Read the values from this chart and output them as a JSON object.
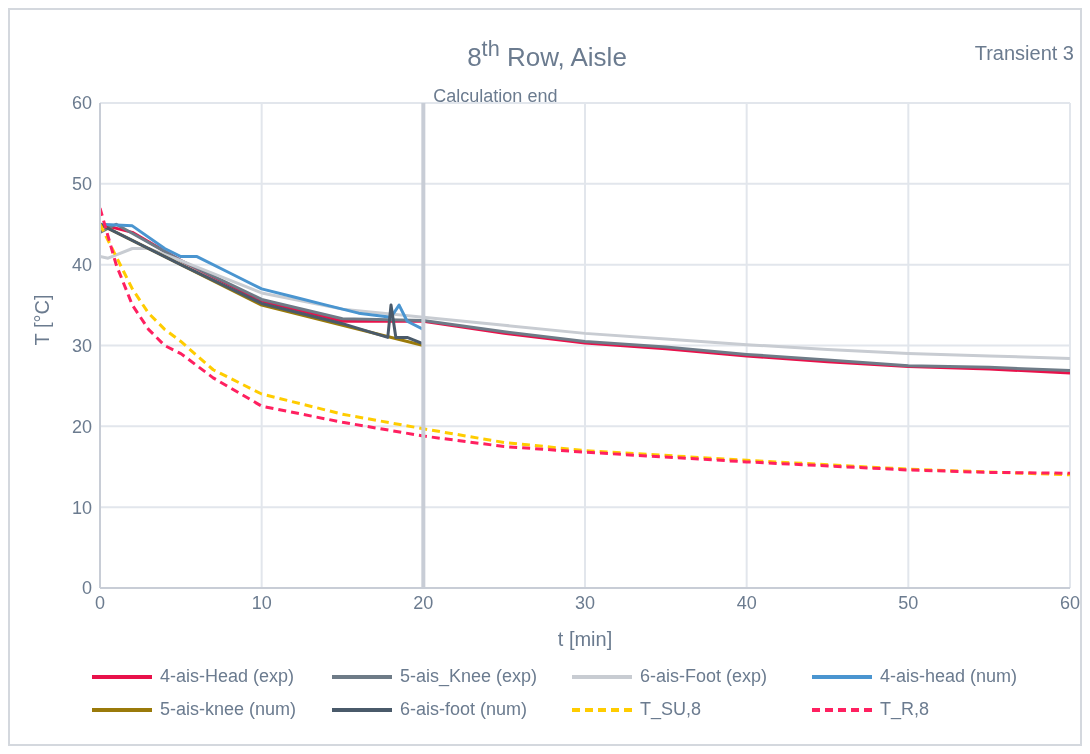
{
  "chart_data": {
    "type": "line",
    "title": "8$^{th}$ Row, Aisle",
    "annotations": [
      "Transient 3"
    ],
    "xlabel": "t [min]",
    "ylabel": "T [°C]",
    "xlim": [
      0,
      60
    ],
    "xticks": [
      0,
      10,
      20,
      30,
      40,
      50,
      60
    ],
    "ylim": [
      0,
      60
    ],
    "yticks": [
      0,
      10,
      20,
      30,
      40,
      50,
      60
    ],
    "grid": true,
    "legend": "bottom",
    "marker": "none",
    "ref_lines": [
      {
        "axis": "x",
        "value": 20,
        "label": "Calculation end",
        "color": "#c8cdd6"
      }
    ],
    "series": [
      {
        "name": "4-ais-Head (exp)",
        "color": "#e8114a",
        "line_style": "solid",
        "x": [
          0,
          2,
          5,
          10,
          15,
          20,
          25,
          30,
          35,
          40,
          45,
          50,
          55,
          60
        ],
        "values": [
          45,
          44,
          40.5,
          35.5,
          33,
          33,
          31.5,
          30.3,
          29.6,
          28.7,
          28,
          27.4,
          27.1,
          26.6
        ]
      },
      {
        "name": "5-ais_Knee (exp)",
        "color": "#6e7b87",
        "line_style": "solid",
        "x": [
          0,
          1,
          5,
          10,
          15,
          20,
          25,
          30,
          35,
          40,
          45,
          50,
          55,
          60
        ],
        "values": [
          44,
          45,
          40.5,
          35.7,
          33.3,
          33.1,
          31.7,
          30.5,
          29.8,
          28.9,
          28.2,
          27.5,
          27.3,
          26.9
        ]
      },
      {
        "name": "6-ais-Foot (exp)",
        "color": "#c8ccd2",
        "line_style": "solid",
        "x": [
          0,
          0.5,
          2,
          3,
          5,
          10,
          15,
          20,
          25,
          30,
          35,
          40,
          45,
          50,
          55,
          60
        ],
        "values": [
          41,
          40.8,
          42,
          42,
          40.5,
          36.5,
          34.5,
          33.5,
          32.5,
          31.5,
          30.8,
          30.1,
          29.5,
          29,
          28.7,
          28.4
        ]
      },
      {
        "name": "4-ais-head (num)",
        "color": "#4a95d0",
        "line_style": "solid",
        "x": [
          0,
          2,
          4,
          5,
          6,
          8,
          10,
          12,
          14,
          15,
          16,
          18,
          18.5,
          19,
          20
        ],
        "values": [
          45,
          44.8,
          42,
          41,
          41,
          39,
          37,
          36,
          35,
          34.5,
          34,
          33.5,
          35,
          33,
          32
        ]
      },
      {
        "name": "5-ais-knee (num)",
        "color": "#9a7a0a",
        "line_style": "solid",
        "x": [
          0,
          5,
          10,
          15,
          20
        ],
        "values": [
          45,
          40,
          35,
          32.5,
          30
        ]
      },
      {
        "name": "6-ais-foot (num)",
        "color": "#4a5a6a",
        "line_style": "solid",
        "x": [
          0,
          5,
          10,
          15,
          17.8,
          18,
          18.3,
          19,
          20
        ],
        "values": [
          45,
          40,
          35.2,
          32.7,
          31,
          35,
          31,
          31,
          30.2
        ]
      },
      {
        "name": "T_SU,8",
        "color": "#ffcc00",
        "line_style": "dashed",
        "x": [
          0,
          1,
          2,
          3,
          4,
          5,
          7,
          10,
          15,
          20,
          25,
          30,
          40,
          50,
          60
        ],
        "values": [
          45,
          41,
          37,
          34,
          32,
          30.5,
          27,
          24,
          21.5,
          19.7,
          18,
          17,
          15.8,
          14.7,
          14
        ]
      },
      {
        "name": "T_R,8",
        "color": "#ff2060",
        "line_style": "dashed",
        "x": [
          0,
          1,
          2,
          3,
          4,
          5,
          7,
          10,
          15,
          20,
          25,
          30,
          40,
          50,
          55,
          60
        ],
        "values": [
          47,
          40,
          35,
          32,
          30,
          29,
          26,
          22.5,
          20.5,
          18.8,
          17.5,
          16.8,
          15.6,
          14.6,
          14.3,
          14.2
        ]
      }
    ]
  }
}
